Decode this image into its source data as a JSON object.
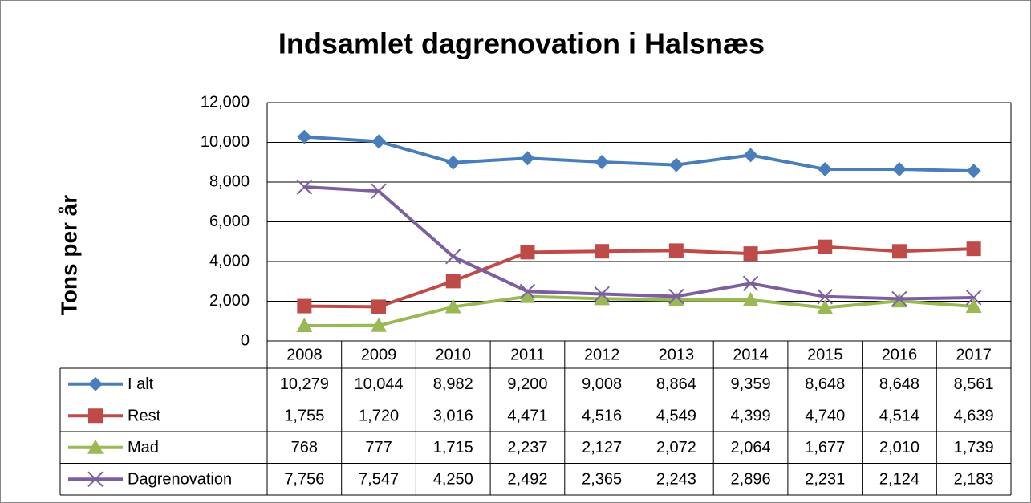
{
  "chart_data": {
    "type": "line",
    "title": "Indsamlet dagrenovation i Halsnæs",
    "y_label": "Tons per år",
    "categories": [
      "2008",
      "2009",
      "2010",
      "2011",
      "2012",
      "2013",
      "2014",
      "2015",
      "2016",
      "2017"
    ],
    "ylim": [
      0,
      12000
    ],
    "yticks": [
      0,
      {
        "value": 2000,
        "label": "2,000"
      },
      {
        "value": 4000,
        "label": "4,000"
      },
      {
        "value": 6000,
        "label": "6,000"
      },
      {
        "value": 8000,
        "label": "8,000"
      },
      {
        "value": 10000,
        "label": "10,000"
      },
      {
        "value": 12000,
        "label": "12,000"
      }
    ],
    "grid": true,
    "series": [
      {
        "name": "I alt",
        "color": "#4a7ebb",
        "marker": "diamond",
        "values": [
          10279,
          10044,
          8982,
          9200,
          9008,
          8864,
          9359,
          8648,
          8648,
          8561
        ],
        "value_labels": [
          "10,279",
          "10,044",
          "8,982",
          "9,200",
          "9,008",
          "8,864",
          "9,359",
          "8,648",
          "8,648",
          "8,561"
        ]
      },
      {
        "name": "Rest",
        "color": "#be4b48",
        "marker": "square",
        "values": [
          1755,
          1720,
          3016,
          4471,
          4516,
          4549,
          4399,
          4740,
          4514,
          4639
        ],
        "value_labels": [
          "1,755",
          "1,720",
          "3,016",
          "4,471",
          "4,516",
          "4,549",
          "4,399",
          "4,740",
          "4,514",
          "4,639"
        ]
      },
      {
        "name": "Mad",
        "color": "#98b954",
        "marker": "triangle",
        "values": [
          768,
          777,
          1715,
          2237,
          2127,
          2072,
          2064,
          1677,
          2010,
          1739
        ],
        "value_labels": [
          "768",
          "777",
          "1,715",
          "2,237",
          "2,127",
          "2,072",
          "2,064",
          "1,677",
          "2,010",
          "1,739"
        ]
      },
      {
        "name": "Dagrenovation",
        "color": "#7d5fa0",
        "marker": "x",
        "values": [
          7756,
          7547,
          4250,
          2492,
          2365,
          2243,
          2896,
          2231,
          2124,
          2183
        ],
        "value_labels": [
          "7,756",
          "7,547",
          "4,250",
          "2,492",
          "2,365",
          "2,243",
          "2,896",
          "2,231",
          "2,124",
          "2,183"
        ]
      }
    ]
  }
}
